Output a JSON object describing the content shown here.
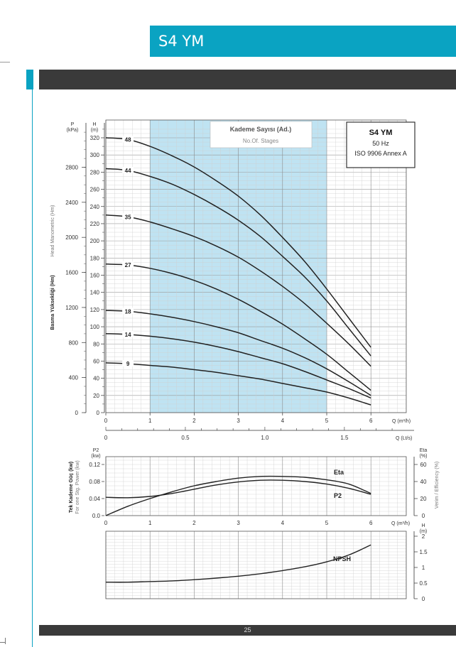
{
  "header": {
    "title": "S4 YM"
  },
  "footer": {
    "page_number": "25"
  },
  "colors": {
    "accent": "#0aa3c2",
    "dark_bar": "#3a3a3a",
    "highlight_band": "#bfe3f2"
  },
  "chart_data": [
    {
      "type": "line",
      "id": "head-curves",
      "legend_box": {
        "line1": "Kademe Sayısı (Ad.)",
        "line2": "No.Of. Stages"
      },
      "info_box": {
        "model": "S4 YM",
        "freq": "50 Hz",
        "standard": "ISO 9906 Annex A"
      },
      "ylabel_left_en": "Head Manometric (Hm)",
      "ylabel_left_tr": "Basma Yüksekliği (Hm)",
      "y_unit_left": "P\n(kPa)",
      "y_unit_h": "H\n(m)",
      "xlim": [
        0,
        6.8
      ],
      "ylim": [
        0,
        330
      ],
      "kpa_ticks": [
        "0",
        "400",
        "800",
        "1200",
        "1600",
        "2000",
        "2400",
        "2800"
      ],
      "h_ticks": [
        "0",
        "20",
        "40",
        "60",
        "80",
        "100",
        "120",
        "140",
        "160",
        "180",
        "200",
        "220",
        "240",
        "260",
        "280",
        "300",
        "320"
      ],
      "q_m3h_ticks": [
        "0",
        "1",
        "2",
        "3",
        "4",
        "5",
        "6"
      ],
      "q_m3h_label": "Q (m³/h)",
      "q_ls_ticks": [
        "0",
        "0.5",
        "1.0",
        "1.5"
      ],
      "q_ls_label": "Q (Lt/s)",
      "highlight_range": [
        1,
        5
      ],
      "series": [
        {
          "name": "48",
          "x": [
            0,
            0.5,
            1,
            1.5,
            2,
            2.5,
            3,
            3.5,
            4,
            4.5,
            5,
            5.5,
            6
          ],
          "y": [
            320,
            318,
            310,
            299,
            286,
            270,
            252,
            230,
            204,
            176,
            144,
            110,
            76
          ]
        },
        {
          "name": "44",
          "x": [
            0,
            0.5,
            1,
            1.5,
            2,
            2.5,
            3,
            3.5,
            4,
            4.5,
            5,
            5.5,
            6
          ],
          "y": [
            284,
            282,
            275,
            266,
            254,
            240,
            224,
            205,
            182,
            158,
            130,
            98,
            66
          ]
        },
        {
          "name": "35",
          "x": [
            0,
            0.5,
            1,
            1.5,
            2,
            2.5,
            3,
            3.5,
            4,
            4.5,
            5,
            5.5,
            6
          ],
          "y": [
            230,
            228,
            222,
            214,
            205,
            194,
            181,
            165,
            147,
            127,
            104,
            80,
            54
          ]
        },
        {
          "name": "27",
          "x": [
            0,
            0.5,
            1,
            1.5,
            2,
            2.5,
            3,
            3.5,
            4,
            4.5,
            5,
            5.5,
            6
          ],
          "y": [
            173,
            172,
            168,
            162,
            154,
            144,
            132,
            118,
            103,
            86,
            68,
            47,
            26
          ]
        },
        {
          "name": "18",
          "x": [
            0,
            0.5,
            1,
            1.5,
            2,
            2.5,
            3,
            3.5,
            4,
            4.5,
            5,
            5.5,
            6
          ],
          "y": [
            119,
            118,
            115,
            111,
            106,
            100,
            93,
            84,
            75,
            64,
            51,
            36,
            20
          ]
        },
        {
          "name": "14",
          "x": [
            0,
            0.5,
            1,
            1.5,
            2,
            2.5,
            3,
            3.5,
            4,
            4.5,
            5,
            5.5,
            6
          ],
          "y": [
            92,
            91,
            89,
            86,
            82,
            77,
            71,
            64,
            57,
            48,
            38,
            28,
            17
          ]
        },
        {
          "name": "9",
          "x": [
            0,
            0.5,
            1,
            1.5,
            2,
            2.5,
            3,
            3.5,
            4,
            4.5,
            5,
            5.5,
            6
          ],
          "y": [
            58,
            57,
            55,
            53,
            50,
            47,
            43,
            39,
            34,
            29,
            24,
            17,
            9
          ]
        }
      ]
    },
    {
      "type": "line",
      "id": "power-efficiency",
      "ylabel_left_tr": "Tek Kademe Güç (kw)",
      "ylabel_left_en": "For one Stg. Power (kw)",
      "y_unit_left": "P2\n(kw)",
      "ylabel_right_en": "Verim / Efficiency (%)",
      "y_unit_right": "Eta\n(%)",
      "p2_ticks": [
        "0.0",
        "0.04",
        "0.08",
        "0.12"
      ],
      "eta_ticks": [
        "0",
        "20",
        "40",
        "60"
      ],
      "q_ticks": [
        "0",
        "1",
        "2",
        "3",
        "4",
        "5",
        "6"
      ],
      "q_label": "Q (m³/h)",
      "series": [
        {
          "name": "Eta",
          "axis": "right",
          "x": [
            0,
            0.5,
            1,
            1.5,
            2,
            2.5,
            3,
            3.5,
            4,
            4.5,
            5,
            5.5,
            6
          ],
          "y": [
            0,
            11,
            20,
            28,
            35,
            40,
            44,
            46,
            46,
            45,
            42,
            37,
            26
          ]
        },
        {
          "name": "P2",
          "axis": "left",
          "x": [
            0,
            0.5,
            1,
            1.5,
            2,
            2.5,
            3,
            3.5,
            4,
            4.5,
            5,
            5.5,
            6
          ],
          "y": [
            0.043,
            0.042,
            0.045,
            0.052,
            0.062,
            0.072,
            0.079,
            0.083,
            0.083,
            0.08,
            0.074,
            0.064,
            0.05
          ]
        }
      ]
    },
    {
      "type": "line",
      "id": "npsh",
      "y_unit_right": "H\n(m)",
      "npsh_ticks": [
        "0",
        "0.5",
        "1",
        "1.5",
        "2"
      ],
      "series": [
        {
          "name": "NPSH",
          "x": [
            0,
            0.5,
            1,
            1.5,
            2,
            2.5,
            3,
            3.5,
            4,
            4.5,
            5,
            5.5,
            6
          ],
          "y": [
            0.53,
            0.53,
            0.55,
            0.57,
            0.61,
            0.66,
            0.72,
            0.8,
            0.9,
            1.02,
            1.18,
            1.4,
            1.72
          ]
        }
      ]
    }
  ]
}
